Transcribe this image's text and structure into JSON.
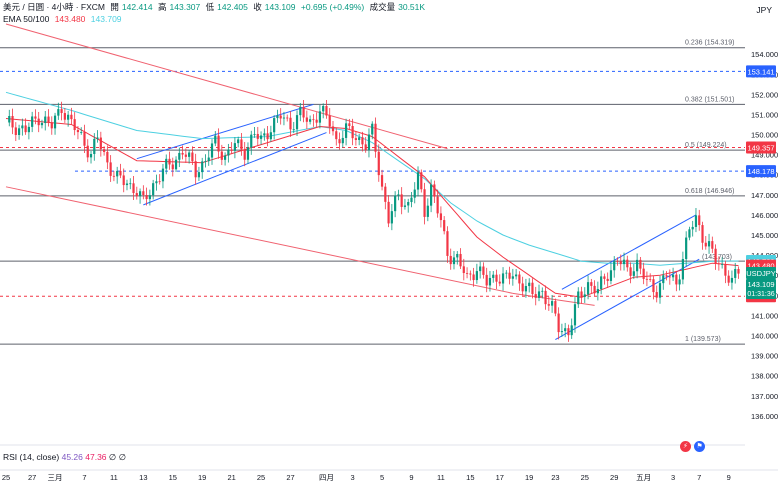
{
  "header": {
    "symbol": "美元 / 日圆 · 4小時 · FXCM",
    "open_label": "開",
    "open": "142.414",
    "high_label": "高",
    "high": "143.307",
    "low_label": "低",
    "low": "142.405",
    "close_label": "收",
    "close": "143.109",
    "change": "+0.695 (+0.49%)",
    "volume_label": "成交量",
    "volume": "30.51K",
    "ema_label": "EMA 50/100",
    "ema50": "143.480",
    "ema100": "143.709",
    "currency": "JPY"
  },
  "rsi": {
    "label": "RSI (14, close)",
    "v1": "45.26",
    "v2": "47.36",
    "v3": "∅",
    "v4": "∅"
  },
  "alert_icons": [
    "lightning-icon",
    "flag-icon"
  ],
  "colors": {
    "up": "#089981",
    "down": "#f23645",
    "ema50": "#f23645",
    "ema100": "#4dd0e1",
    "channel": "#2962ff",
    "trendline": "#f06270",
    "level": "#787b86",
    "dashed": "#2962ff",
    "dashed_red": "#f23645"
  },
  "chart_data": {
    "type": "candlestick",
    "symbol": "USDJPY",
    "timeframe": "4h",
    "ylim": [
      135.2,
      155.6
    ],
    "yticks": [
      "154.000",
      "153.000",
      "152.000",
      "151.000",
      "150.000",
      "149.000",
      "148.000",
      "147.000",
      "146.000",
      "145.000",
      "144.000",
      "143.000",
      "142.000",
      "141.000",
      "140.000",
      "139.000",
      "138.000",
      "137.000",
      "136.000",
      "135.000"
    ],
    "xticks": [
      {
        "i": 0,
        "label": "25"
      },
      {
        "i": 8,
        "label": "27"
      },
      {
        "i": 15,
        "label": "三月"
      },
      {
        "i": 24,
        "label": "7"
      },
      {
        "i": 33,
        "label": "11"
      },
      {
        "i": 42,
        "label": "13"
      },
      {
        "i": 51,
        "label": "15"
      },
      {
        "i": 60,
        "label": "19"
      },
      {
        "i": 69,
        "label": "21"
      },
      {
        "i": 78,
        "label": "25"
      },
      {
        "i": 87,
        "label": "27"
      },
      {
        "i": 98,
        "label": "四月"
      },
      {
        "i": 106,
        "label": "3"
      },
      {
        "i": 115,
        "label": "5"
      },
      {
        "i": 124,
        "label": "9"
      },
      {
        "i": 133,
        "label": "11"
      },
      {
        "i": 142,
        "label": "15"
      },
      {
        "i": 151,
        "label": "17"
      },
      {
        "i": 160,
        "label": "19"
      },
      {
        "i": 168,
        "label": "23"
      },
      {
        "i": 177,
        "label": "25"
      },
      {
        "i": 186,
        "label": "29"
      },
      {
        "i": 195,
        "label": "五月"
      },
      {
        "i": 204,
        "label": "3"
      },
      {
        "i": 212,
        "label": "7"
      },
      {
        "i": 221,
        "label": "9"
      }
    ],
    "close_path": [
      [
        0,
        150.6
      ],
      [
        6,
        150.2
      ],
      [
        10,
        150.9
      ],
      [
        14,
        150.4
      ],
      [
        17,
        151.4
      ],
      [
        20,
        150.5
      ],
      [
        23,
        149.9
      ],
      [
        26,
        149.0
      ],
      [
        28,
        149.8
      ],
      [
        31,
        148.6
      ],
      [
        34,
        147.8
      ],
      [
        37,
        147.6
      ],
      [
        40,
        147.2
      ],
      [
        42,
        146.6
      ],
      [
        45,
        147.5
      ],
      [
        48,
        148.2
      ],
      [
        51,
        148.6
      ],
      [
        54,
        149.2
      ],
      [
        58,
        148.2
      ],
      [
        61,
        148.7
      ],
      [
        64,
        149.6
      ],
      [
        67,
        148.9
      ],
      [
        70,
        149.5
      ],
      [
        73,
        149.2
      ],
      [
        76,
        150.0
      ],
      [
        78,
        149.7
      ],
      [
        81,
        150.4
      ],
      [
        84,
        150.9
      ],
      [
        87,
        150.5
      ],
      [
        90,
        151.0
      ],
      [
        93,
        150.6
      ],
      [
        96,
        151.2
      ],
      [
        99,
        150.6
      ],
      [
        101,
        149.7
      ],
      [
        104,
        150.2
      ],
      [
        107,
        149.9
      ],
      [
        110,
        149.5
      ],
      [
        112,
        150.1
      ],
      [
        115,
        147.4
      ],
      [
        117,
        145.8
      ],
      [
        120,
        146.9
      ],
      [
        123,
        146.5
      ],
      [
        126,
        147.8
      ],
      [
        128,
        146.2
      ],
      [
        130,
        147.4
      ],
      [
        133,
        145.6
      ],
      [
        135,
        144.1
      ],
      [
        138,
        143.8
      ],
      [
        141,
        142.8
      ],
      [
        144,
        143.4
      ],
      [
        147,
        142.6
      ],
      [
        150,
        143.0
      ],
      [
        153,
        142.8
      ],
      [
        155,
        143.0
      ],
      [
        158,
        142.6
      ],
      [
        161,
        142.0
      ],
      [
        164,
        142.2
      ],
      [
        167,
        141.3
      ],
      [
        169,
        140.4
      ],
      [
        172,
        140.2
      ],
      [
        175,
        141.8
      ],
      [
        178,
        142.6
      ],
      [
        181,
        142.2
      ],
      [
        184,
        143.1
      ],
      [
        187,
        143.8
      ],
      [
        190,
        143.2
      ],
      [
        193,
        143.6
      ],
      [
        196,
        142.6
      ],
      [
        199,
        142.3
      ],
      [
        202,
        143.0
      ],
      [
        205,
        142.6
      ],
      [
        207,
        143.9
      ],
      [
        209,
        145.2
      ],
      [
        211,
        145.8
      ],
      [
        213,
        145.0
      ],
      [
        215,
        144.4
      ],
      [
        217,
        143.7
      ],
      [
        219,
        143.4
      ],
      [
        221,
        143.0
      ],
      [
        222,
        142.7
      ],
      [
        224,
        143.1
      ]
    ],
    "ema50_path": [
      [
        0,
        150.8
      ],
      [
        20,
        150.5
      ],
      [
        40,
        148.7
      ],
      [
        60,
        148.6
      ],
      [
        80,
        149.6
      ],
      [
        96,
        150.4
      ],
      [
        104,
        150.3
      ],
      [
        112,
        149.9
      ],
      [
        120,
        148.9
      ],
      [
        128,
        147.9
      ],
      [
        136,
        146.4
      ],
      [
        144,
        144.9
      ],
      [
        152,
        143.9
      ],
      [
        160,
        143.0
      ],
      [
        168,
        142.1
      ],
      [
        176,
        141.9
      ],
      [
        184,
        142.4
      ],
      [
        192,
        142.9
      ],
      [
        200,
        143.0
      ],
      [
        208,
        143.3
      ],
      [
        216,
        143.6
      ],
      [
        224,
        143.48
      ]
    ],
    "ema100_path": [
      [
        0,
        152.1
      ],
      [
        20,
        151.2
      ],
      [
        40,
        150.2
      ],
      [
        60,
        149.8
      ],
      [
        80,
        149.9
      ],
      [
        96,
        150.4
      ],
      [
        104,
        150.2
      ],
      [
        112,
        149.6
      ],
      [
        120,
        148.7
      ],
      [
        128,
        147.8
      ],
      [
        136,
        146.6
      ],
      [
        144,
        145.7
      ],
      [
        152,
        145.0
      ],
      [
        160,
        144.5
      ],
      [
        168,
        144.1
      ],
      [
        176,
        143.7
      ],
      [
        184,
        143.6
      ],
      [
        192,
        143.6
      ],
      [
        200,
        143.5
      ],
      [
        208,
        143.6
      ],
      [
        216,
        143.7
      ],
      [
        224,
        143.709
      ]
    ],
    "fib_levels": [
      {
        "label": "0.236 (154.319)",
        "value": 154.319
      },
      {
        "label": "0.382 (151.501)",
        "value": 151.501
      },
      {
        "label": "0.5 (149.224)",
        "value": 149.224
      },
      {
        "label": "0.618 (146.946)",
        "value": 146.946
      },
      {
        "label": "1 (139.573)",
        "value": 139.573
      }
    ],
    "horizontal_levels": [
      {
        "value": 153.141,
        "style": "dashed",
        "color": "blue"
      },
      {
        "value": 149.357,
        "style": "dashed",
        "color": "red"
      },
      {
        "value": 148.178,
        "style": "dashed",
        "color": "blue"
      },
      {
        "value": 143.703,
        "style": "solid",
        "color": "gray",
        "label": "(143.703)"
      },
      {
        "value": 141.955,
        "style": "dashed",
        "color": "red"
      }
    ],
    "price_labels": [
      {
        "value": 153.141,
        "text": "153.141",
        "color": "#2962ff"
      },
      {
        "value": 149.357,
        "text": "149.357",
        "color": "#f23645"
      },
      {
        "value": 148.178,
        "text": "148.178",
        "color": "#2962ff"
      },
      {
        "value": 143.709,
        "text": "143.709",
        "color": "#4dd0e1"
      },
      {
        "value": 143.48,
        "text": "143.480",
        "color": "#f23645"
      },
      {
        "value": 143.109,
        "text": "USDJPY",
        "color": "#089981"
      },
      {
        "value": 141.955,
        "text": "141.955",
        "color": "#f23645"
      }
    ],
    "last_price": {
      "value": 143.109,
      "text": "143.109",
      "countdown": "01:31:36"
    },
    "trendlines": [
      {
        "kind": "resistance",
        "from": [
          0,
          155.5
        ],
        "to": [
          135,
          149.3
        ]
      },
      {
        "kind": "support",
        "from": [
          0,
          147.4
        ],
        "to": [
          155,
          142.1
        ]
      },
      {
        "kind": "lower-red",
        "from": [
          155,
          142.1
        ],
        "to": [
          180,
          141.5
        ]
      },
      {
        "kind": "bear-flag-top",
        "from": [
          40,
          148.8
        ],
        "to": [
          94,
          151.5
        ]
      },
      {
        "kind": "bear-flag-bottom",
        "from": [
          42,
          146.5
        ],
        "to": [
          98,
          150.1
        ]
      },
      {
        "kind": "rising-channel-top",
        "from": [
          170,
          142.3
        ],
        "to": [
          211,
          146.0
        ]
      },
      {
        "kind": "rising-channel-bottom",
        "from": [
          168,
          139.8
        ],
        "to": [
          212,
          143.8
        ]
      }
    ]
  }
}
